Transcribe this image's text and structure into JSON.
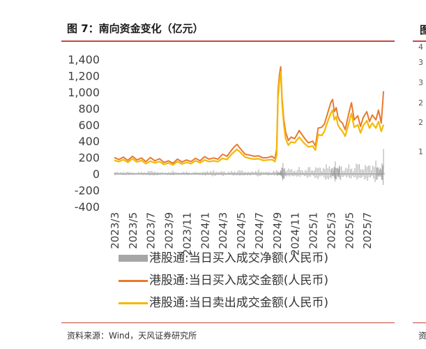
{
  "header": {
    "figure_title": "图 7：南向资金变化（亿元）",
    "next_figure_glyph": "图",
    "next_figure_ticks": [
      "4",
      "3",
      "3",
      "2",
      "2",
      "1"
    ]
  },
  "footer": {
    "source": "资料来源：Wind，天风证券研究所",
    "source_right_glyph": "资"
  },
  "chart_data": {
    "type": "line",
    "title": "图 7：南向资金变化（亿元）",
    "xlabel": "",
    "ylabel": "",
    "ylim": [
      -400,
      1400
    ],
    "yticks": [
      -400,
      -200,
      0,
      200,
      400,
      600,
      800,
      1000,
      1200,
      1400
    ],
    "ytick_labels": [
      "-400",
      "-200",
      "0",
      "200",
      "400",
      "600",
      "800",
      "1,000",
      "1,200",
      "1,400"
    ],
    "xrange_months": [
      0,
      30
    ],
    "xticks": [
      {
        "label": "2023/3",
        "month": 0
      },
      {
        "label": "2023/5",
        "month": 2
      },
      {
        "label": "2023/7",
        "month": 4
      },
      {
        "label": "2023/9",
        "month": 6
      },
      {
        "label": "2023/11",
        "month": 8
      },
      {
        "label": "2024/1",
        "month": 10
      },
      {
        "label": "2024/3",
        "month": 12
      },
      {
        "label": "2024/5",
        "month": 14
      },
      {
        "label": "2024/7",
        "month": 16
      },
      {
        "label": "2024/9",
        "month": 18
      },
      {
        "label": "2024/11",
        "month": 20
      },
      {
        "label": "2025/1",
        "month": 22
      },
      {
        "label": "2025/3",
        "month": 24
      },
      {
        "label": "2025/5",
        "month": 26
      },
      {
        "label": "2025/7",
        "month": 28
      }
    ],
    "grid": false,
    "legend_position": "bottom",
    "series": [
      {
        "name": "港股通:当日买入成交净额(人民币)",
        "kind": "bar",
        "color": "#a6a6a6",
        "x": [
          0,
          0.5,
          1,
          1.5,
          2,
          2.5,
          3,
          3.5,
          4,
          4.5,
          5,
          5.5,
          6,
          6.5,
          7,
          7.5,
          8,
          8.5,
          9,
          9.5,
          10,
          10.5,
          11,
          11.5,
          12,
          12.5,
          13,
          13.5,
          14,
          14.5,
          15,
          15.5,
          16,
          16.5,
          17,
          17.5,
          18,
          18.3,
          18.5,
          18.7,
          19,
          19.5,
          20,
          20.5,
          21,
          21.5,
          22,
          22.5,
          23,
          23.5,
          24,
          24.3,
          24.5,
          24.8,
          25,
          25.5,
          26,
          26.5,
          27,
          27.5,
          28,
          28.5,
          29,
          29.3,
          29.6,
          29.85
        ],
        "values": [
          38,
          -22,
          30,
          -30,
          22,
          -18,
          28,
          -25,
          45,
          -35,
          30,
          -20,
          25,
          -40,
          20,
          -25,
          32,
          -18,
          28,
          -22,
          45,
          -30,
          60,
          -25,
          48,
          -20,
          40,
          -35,
          55,
          -30,
          42,
          -28,
          70,
          -25,
          38,
          -30,
          52,
          25,
          -55,
          160,
          -60,
          80,
          -50,
          90,
          -35,
          110,
          -45,
          135,
          -50,
          140,
          120,
          -60,
          195,
          -70,
          150,
          -55,
          130,
          -60,
          170,
          -65,
          190,
          -75,
          210,
          -80,
          95,
          305
        ]
      },
      {
        "name": "港股通:当日买入成交金额(人民币)",
        "kind": "line",
        "color": "#e8792d",
        "x": [
          0,
          0.5,
          1,
          1.5,
          2,
          2.5,
          3,
          3.5,
          4,
          4.5,
          5,
          5.5,
          6,
          6.5,
          7,
          7.5,
          8,
          8.5,
          9,
          9.5,
          10,
          10.5,
          11,
          11.5,
          12,
          12.5,
          13,
          13.3,
          13.6,
          14,
          14.5,
          15,
          15.5,
          16,
          16.5,
          17,
          17.5,
          17.8,
          18,
          18.15,
          18.3,
          18.45,
          18.6,
          18.8,
          19,
          19.3,
          19.6,
          20,
          20.5,
          21,
          21.5,
          22,
          22.3,
          22.6,
          23,
          23.3,
          23.6,
          24,
          24.2,
          24.4,
          24.6,
          24.8,
          25,
          25.3,
          25.6,
          26,
          26.3,
          26.6,
          27,
          27.3,
          27.6,
          28,
          28.3,
          28.6,
          29,
          29.3,
          29.6,
          29.85
        ],
        "values": [
          200,
          175,
          205,
          165,
          215,
          170,
          195,
          150,
          200,
          160,
          185,
          140,
          160,
          130,
          180,
          145,
          170,
          150,
          190,
          160,
          210,
          180,
          195,
          180,
          240,
          215,
          290,
          330,
          360,
          305,
          240,
          230,
          215,
          220,
          195,
          200,
          215,
          185,
          300,
          1000,
          1210,
          1310,
          920,
          660,
          510,
          410,
          450,
          430,
          530,
          450,
          380,
          400,
          340,
          560,
          570,
          610,
          720,
          870,
          910,
          760,
          810,
          700,
          650,
          620,
          540,
          740,
          870,
          660,
          710,
          580,
          690,
          760,
          640,
          720,
          660,
          780,
          620,
          1010
        ]
      },
      {
        "name": "港股通:当日卖出成交金额(人民币)",
        "kind": "line",
        "color": "#f5b800",
        "x": [
          0,
          0.5,
          1,
          1.5,
          2,
          2.5,
          3,
          3.5,
          4,
          4.5,
          5,
          5.5,
          6,
          6.5,
          7,
          7.5,
          8,
          8.5,
          9,
          9.5,
          10,
          10.5,
          11,
          11.5,
          12,
          12.5,
          13,
          13.3,
          13.6,
          14,
          14.5,
          15,
          15.5,
          16,
          16.5,
          17,
          17.5,
          17.8,
          18,
          18.15,
          18.3,
          18.45,
          18.6,
          18.8,
          19,
          19.3,
          19.6,
          20,
          20.5,
          21,
          21.5,
          22,
          22.3,
          22.6,
          23,
          23.3,
          23.6,
          24,
          24.2,
          24.4,
          24.6,
          24.8,
          25,
          25.3,
          25.6,
          26,
          26.3,
          26.6,
          27,
          27.3,
          27.6,
          28,
          28.3,
          28.6,
          29,
          29.3,
          29.6,
          29.85
        ],
        "values": [
          165,
          150,
          175,
          140,
          185,
          145,
          165,
          125,
          155,
          135,
          150,
          115,
          135,
          110,
          150,
          120,
          140,
          125,
          160,
          135,
          170,
          150,
          160,
          150,
          190,
          175,
          240,
          270,
          300,
          260,
          205,
          190,
          180,
          185,
          165,
          170,
          175,
          150,
          230,
          920,
          1130,
          1250,
          860,
          600,
          430,
          350,
          390,
          380,
          450,
          380,
          330,
          340,
          290,
          480,
          470,
          520,
          620,
          740,
          780,
          660,
          700,
          600,
          560,
          520,
          460,
          620,
          740,
          570,
          600,
          500,
          590,
          650,
          560,
          620,
          560,
          640,
          520,
          600
        ]
      }
    ]
  }
}
